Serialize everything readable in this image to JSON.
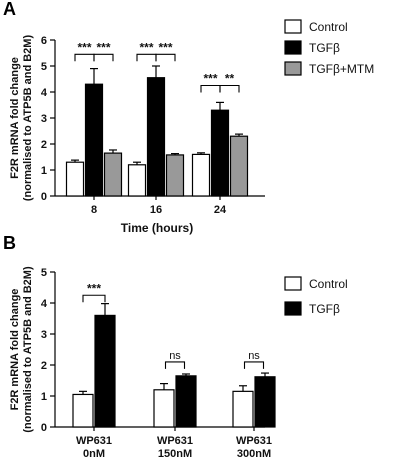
{
  "chart_data": [
    {
      "type": "bar",
      "panel_label": "A",
      "title": "",
      "ylabel": "F2R mRNA fold change\n(normalised to ATP5B and B2M)",
      "xlabel": "Time (hours)",
      "ylim": [
        0,
        6
      ],
      "yticks": [
        0,
        1,
        2,
        3,
        4,
        5,
        6
      ],
      "categories": [
        "8",
        "16",
        "24"
      ],
      "legend_position": "top-right",
      "series": [
        {
          "name": "Control",
          "values": [
            1.3,
            1.2,
            1.6
          ],
          "errors": [
            0.08,
            0.1,
            0.06
          ],
          "fill": "#ffffff"
        },
        {
          "name": "TGFβ",
          "values": [
            4.3,
            4.55,
            3.3
          ],
          "errors": [
            0.6,
            0.45,
            0.3
          ],
          "fill": "#000000"
        },
        {
          "name": "TGFβ+MTM",
          "values": [
            1.65,
            1.58,
            2.3
          ],
          "errors": [
            0.12,
            0.05,
            0.08
          ],
          "fill": "#999999"
        }
      ],
      "significance": [
        {
          "category": 0,
          "from": 0,
          "to": 1,
          "label": "***",
          "height": 5.45
        },
        {
          "category": 0,
          "from": 1,
          "to": 2,
          "label": "***",
          "height": 5.45
        },
        {
          "category": 1,
          "from": 0,
          "to": 1,
          "label": "***",
          "height": 5.45
        },
        {
          "category": 1,
          "from": 1,
          "to": 2,
          "label": "***",
          "height": 5.45
        },
        {
          "category": 2,
          "from": 0,
          "to": 1,
          "label": "***",
          "height": 4.25
        },
        {
          "category": 2,
          "from": 1,
          "to": 2,
          "label": "**",
          "height": 4.25
        }
      ]
    },
    {
      "type": "bar",
      "panel_label": "B",
      "title": "",
      "ylabel": "F2R mRNA fold change\n(normalised to ATP5B and B2M)",
      "xlabel": "",
      "ylim": [
        0,
        5
      ],
      "yticks": [
        0,
        1,
        2,
        3,
        4,
        5
      ],
      "categories": [
        "WP631\n0nM",
        "WP631\n150nM",
        "WP631\n300nM"
      ],
      "legend_position": "top-right",
      "series": [
        {
          "name": "Control",
          "values": [
            1.05,
            1.2,
            1.15
          ],
          "errors": [
            0.1,
            0.2,
            0.18
          ],
          "fill": "#ffffff"
        },
        {
          "name": "TGFβ",
          "values": [
            3.6,
            1.65,
            1.62
          ],
          "errors": [
            0.38,
            0.06,
            0.12
          ],
          "fill": "#000000"
        }
      ],
      "significance": [
        {
          "category": 0,
          "from": 0,
          "to": 1,
          "label": "***",
          "height": 4.25
        },
        {
          "category": 1,
          "from": 0,
          "to": 1,
          "label": "ns",
          "height": 2.1
        },
        {
          "category": 2,
          "from": 0,
          "to": 1,
          "label": "ns",
          "height": 2.1
        }
      ]
    }
  ]
}
